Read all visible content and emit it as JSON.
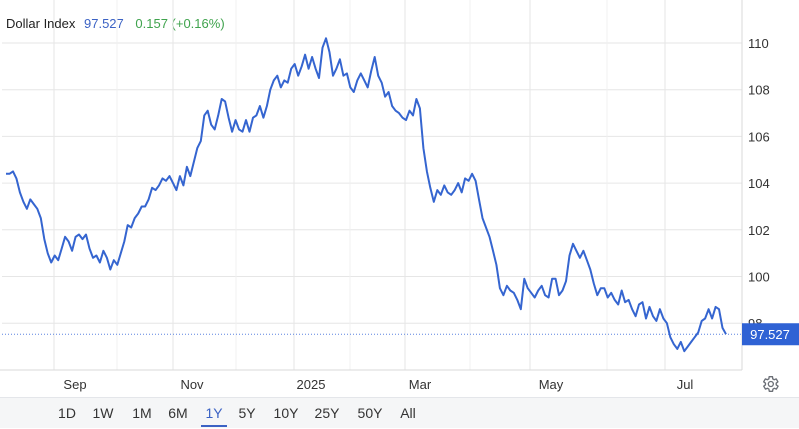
{
  "header": {
    "name": "Dollar Index",
    "price": "97.527",
    "change": "0.157 (+0.16%)"
  },
  "colors": {
    "line": "#3565d0",
    "accent": "#3b62c4",
    "positive": "#3fa34d",
    "grid": "#e6e6e6",
    "price_tag_bg": "#2f62d4"
  },
  "ranges": [
    "1D",
    "1W",
    "1M",
    "6M",
    "1Y",
    "5Y",
    "10Y",
    "25Y",
    "50Y",
    "All"
  ],
  "active_range": "1Y",
  "settings_icon": "gear-icon",
  "chart_data": {
    "type": "line",
    "title": "Dollar Index",
    "xlabel": "",
    "ylabel": "",
    "x_tick_labels": [
      "Sep",
      "Nov",
      "2025",
      "Mar",
      "May",
      "Jul"
    ],
    "y_ticks": [
      98,
      100,
      102,
      104,
      106,
      108,
      110
    ],
    "ylim": [
      96.7,
      111.5
    ],
    "grid": true,
    "last_value_label": "97.527",
    "last_value": 97.527,
    "series": [
      {
        "values": [
          104.4,
          104.4,
          104.5,
          104.2,
          103.6,
          103.2,
          102.9,
          103.3,
          103.1,
          102.9,
          102.5,
          101.6,
          101.0,
          100.6,
          100.9,
          100.7,
          101.2,
          101.7,
          101.5,
          101.1,
          101.7,
          101.8,
          101.6,
          101.8,
          101.2,
          100.8,
          100.9,
          100.6,
          101.1,
          100.8,
          100.3,
          100.7,
          100.5,
          101.0,
          101.5,
          102.2,
          102.1,
          102.5,
          102.7,
          103.0,
          103.0,
          103.3,
          103.8,
          103.7,
          103.9,
          104.2,
          104.1,
          104.3,
          104.0,
          103.7,
          104.3,
          103.9,
          104.7,
          104.3,
          104.9,
          105.5,
          105.8,
          106.9,
          107.1,
          106.5,
          106.3,
          106.9,
          107.6,
          107.5,
          106.8,
          106.2,
          106.7,
          106.3,
          106.2,
          106.7,
          106.2,
          106.8,
          106.9,
          107.3,
          106.8,
          107.3,
          108.0,
          108.4,
          108.6,
          108.1,
          108.4,
          108.3,
          108.9,
          109.1,
          108.6,
          109.0,
          109.5,
          108.9,
          109.4,
          108.9,
          108.5,
          109.8,
          110.2,
          109.6,
          108.6,
          108.9,
          109.3,
          108.6,
          108.7,
          108.1,
          107.9,
          108.4,
          108.7,
          108.4,
          108.1,
          108.8,
          109.4,
          108.6,
          108.3,
          107.7,
          107.9,
          107.3,
          107.1,
          107.0,
          106.8,
          106.7,
          107.1,
          106.9,
          107.6,
          107.2,
          105.5,
          104.5,
          103.8,
          103.2,
          103.7,
          103.5,
          103.9,
          103.6,
          103.5,
          103.7,
          104.0,
          103.6,
          104.2,
          104.1,
          104.4,
          104.1,
          103.3,
          102.5,
          102.1,
          101.7,
          101.1,
          100.5,
          99.5,
          99.2,
          99.6,
          99.4,
          99.3,
          99.0,
          98.6,
          99.9,
          99.5,
          99.3,
          99.1,
          99.4,
          99.6,
          99.2,
          99.1,
          99.9,
          99.9,
          99.2,
          99.4,
          99.8,
          100.9,
          101.4,
          101.1,
          100.8,
          101.1,
          100.7,
          100.3,
          99.7,
          99.2,
          99.5,
          99.5,
          99.1,
          99.3,
          99.0,
          98.8,
          99.4,
          98.9,
          99.0,
          98.6,
          98.3,
          98.8,
          98.9,
          98.2,
          98.7,
          98.3,
          98.1,
          98.6,
          98.2,
          98.0,
          97.4,
          97.1,
          96.9,
          97.2,
          96.8,
          97.0,
          97.2,
          97.4,
          97.6,
          98.1,
          98.2,
          98.6,
          98.2,
          98.7,
          98.6,
          97.8,
          97.527
        ]
      }
    ]
  }
}
